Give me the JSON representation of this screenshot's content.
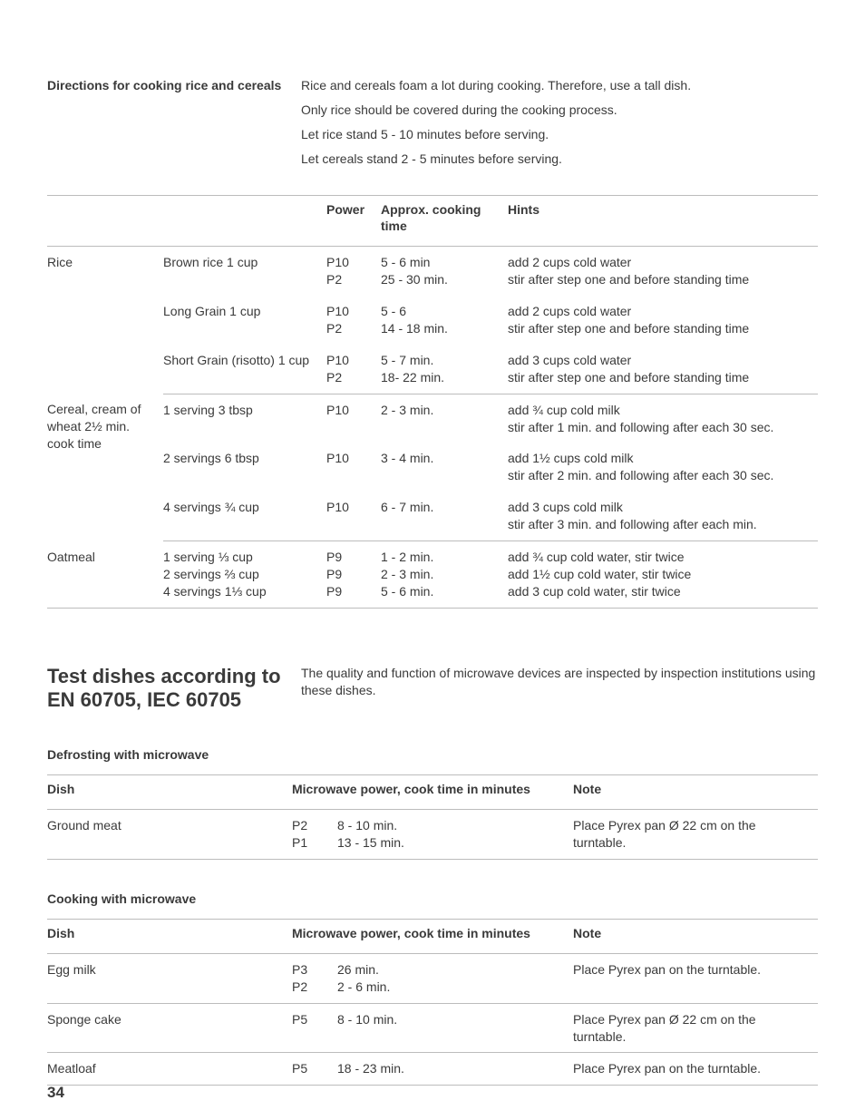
{
  "page_number": "34",
  "directions": {
    "heading": "Directions for cooking rice and cereals",
    "lines": [
      "Rice and cereals foam a lot during cooking. Therefore, use a tall dish.",
      "Only rice should be covered during the cooking process.",
      "Let rice stand 5 - 10 minutes before serving.",
      "Let cereals stand 2 - 5 minutes before serving."
    ]
  },
  "rice_table": {
    "headers": {
      "power": "Power",
      "time": "Approx. cooking time",
      "hints": "Hints"
    },
    "groups": [
      {
        "category": "Rice",
        "rows": [
          {
            "item": "Brown rice 1 cup",
            "power": [
              "P10",
              "P2"
            ],
            "time": [
              "5 - 6 min",
              "25 - 30 min."
            ],
            "hints": [
              "add 2 cups cold water",
              "stir after step one and before standing time"
            ]
          },
          {
            "item": "Long Grain 1 cup",
            "power": [
              "P10",
              "P2"
            ],
            "time": [
              "5 - 6",
              "14 - 18 min."
            ],
            "hints": [
              "add 2 cups cold water",
              "stir after step one and before standing time"
            ]
          },
          {
            "item": "Short Grain (risotto) 1 cup",
            "power": [
              "P10",
              "P2"
            ],
            "time": [
              "5 - 7 min.",
              "18- 22 min."
            ],
            "hints": [
              "add 3 cups cold water",
              "stir after step one and before standing time"
            ]
          }
        ]
      },
      {
        "category": "Cereal, cream of wheat 2½ min. cook time",
        "rows": [
          {
            "item": "1 serving 3 tbsp",
            "power": [
              "P10"
            ],
            "time": [
              "2 - 3 min."
            ],
            "hints": [
              "add ¾ cup cold milk",
              "stir after 1 min. and following after each 30 sec."
            ]
          },
          {
            "item": "2 servings 6 tbsp",
            "power": [
              "P10"
            ],
            "time": [
              "3 - 4 min."
            ],
            "hints": [
              "add 1½ cups cold milk",
              "stir after 2 min. and following after each 30 sec."
            ]
          },
          {
            "item": "4 servings ¾ cup",
            "power": [
              "P10"
            ],
            "time": [
              "6 - 7 min."
            ],
            "hints": [
              "add 3 cups cold milk",
              "stir after 3 min. and following after each min."
            ]
          }
        ]
      },
      {
        "category": "Oatmeal",
        "rows": [
          {
            "item": "1 serving ⅓ cup",
            "power": [
              "P9"
            ],
            "time": [
              "1 - 2 min."
            ],
            "hints": [
              "add ¾ cup cold water, stir twice"
            ]
          },
          {
            "item": "2 servings ⅔ cup",
            "power": [
              "P9"
            ],
            "time": [
              "2 - 3 min."
            ],
            "hints": [
              "add 1½ cup cold water, stir twice"
            ]
          },
          {
            "item": "4 servings 1⅓ cup",
            "power": [
              "P9"
            ],
            "time": [
              "5 - 6 min."
            ],
            "hints": [
              "add 3 cup cold water, stir twice"
            ]
          }
        ]
      }
    ]
  },
  "test_section": {
    "heading": "Test dishes according to EN 60705, IEC 60705",
    "intro": "The quality and function of microwave devices are inspected by inspection institutions using these dishes."
  },
  "defrost": {
    "title": "Defrosting with microwave",
    "headers": {
      "dish": "Dish",
      "power": "Microwave power, cook time in minutes",
      "note": "Note"
    },
    "rows": [
      {
        "dish": "Ground meat",
        "power": [
          "P2",
          "P1"
        ],
        "time": [
          "8 - 10 min.",
          "13 - 15 min."
        ],
        "note": [
          "Place Pyrex pan Ø 22 cm on the",
          "turntable."
        ]
      }
    ]
  },
  "cooking": {
    "title": "Cooking with microwave",
    "headers": {
      "dish": "Dish",
      "power": "Microwave power, cook time in minutes",
      "note": "Note"
    },
    "rows": [
      {
        "dish": "Egg milk",
        "power": [
          "P3",
          "P2"
        ],
        "time": [
          "26 min.",
          "2 - 6 min."
        ],
        "note": [
          "Place Pyrex pan on the turntable."
        ]
      },
      {
        "dish": "Sponge cake",
        "power": [
          "P5"
        ],
        "time": [
          "8 - 10 min."
        ],
        "note": [
          "Place Pyrex pan Ø 22 cm on the",
          "turntable."
        ]
      },
      {
        "dish": "Meatloaf",
        "power": [
          "P5"
        ],
        "time": [
          "18 - 23 min."
        ],
        "note": [
          "Place Pyrex pan on the turntable."
        ]
      }
    ]
  }
}
